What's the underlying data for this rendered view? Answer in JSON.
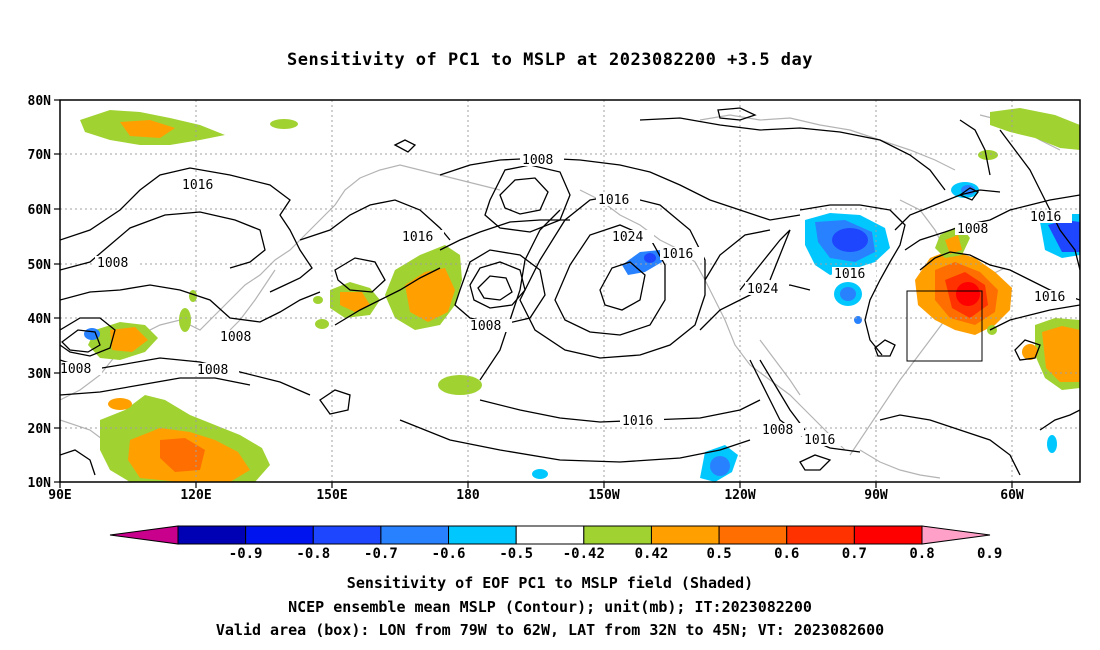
{
  "title": "Sensitivity of PC1 to MSLP at 2023082200 +3.5 day",
  "lat_labels": [
    "80N",
    "70N",
    "60N",
    "50N",
    "40N",
    "30N",
    "20N",
    "10N"
  ],
  "lon_labels": [
    "90E",
    "120E",
    "150E",
    "180",
    "150W",
    "120W",
    "90W",
    "60W"
  ],
  "contour_labels": [
    {
      "text": "1016",
      "id": "c1"
    },
    {
      "text": "1008",
      "id": "c2"
    },
    {
      "text": "1008",
      "id": "c3"
    },
    {
      "text": "1008",
      "id": "c4"
    },
    {
      "text": "1008",
      "id": "c5"
    },
    {
      "text": "1016",
      "id": "c6"
    },
    {
      "text": "1008",
      "id": "c7"
    },
    {
      "text": "1008",
      "id": "c8"
    },
    {
      "text": "1016",
      "id": "c9"
    },
    {
      "text": "1024",
      "id": "c10"
    },
    {
      "text": "1016",
      "id": "c11"
    },
    {
      "text": "1024",
      "id": "c12"
    },
    {
      "text": "1016",
      "id": "c13"
    },
    {
      "text": "1008",
      "id": "c14"
    },
    {
      "text": "1016",
      "id": "c15"
    },
    {
      "text": "1008",
      "id": "c16"
    },
    {
      "text": "1016",
      "id": "c17"
    },
    {
      "text": "1016",
      "id": "c18"
    }
  ],
  "colorbar": {
    "labels": [
      "-0.9",
      "-0.8",
      "-0.7",
      "-0.6",
      "-0.5",
      "-0.42",
      "0.42",
      "0.5",
      "0.6",
      "0.7",
      "0.8",
      "0.9"
    ],
    "colors": [
      "#c8008c",
      "#0000b4",
      "#0014f0",
      "#1e46ff",
      "#2882ff",
      "#00c8ff",
      "#ffffff",
      "#a0d232",
      "#ffa000",
      "#ff6e00",
      "#ff3200",
      "#ff0000",
      "#ffa0c8"
    ]
  },
  "captions": {
    "line1": "Sensitivity of EOF PC1 to MSLP field (Shaded)",
    "line2": "NCEP ensemble mean MSLP (Contour); unit(mb); IT:2023082200",
    "line3": "Valid area (box): LON from 79W to 62W, LAT from 32N to 45N; VT: 2023082600"
  }
}
